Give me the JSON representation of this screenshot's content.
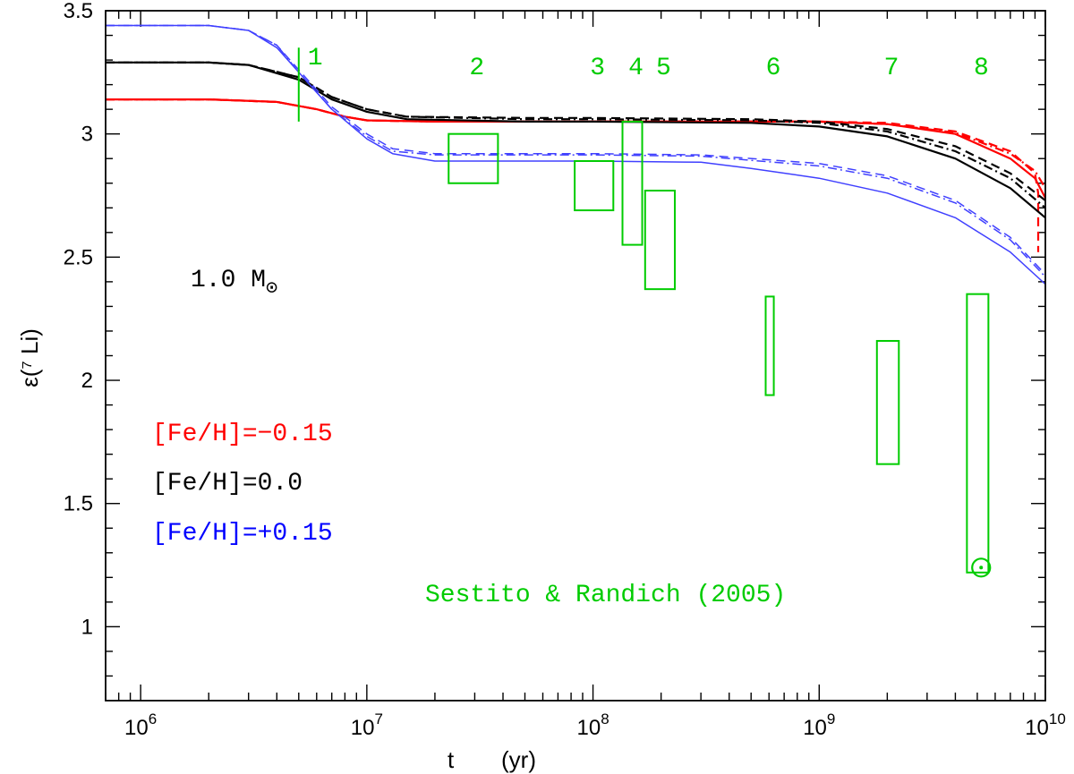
{
  "chart_data": {
    "type": "line",
    "xlabel": "t",
    "xunit": "(yr)",
    "ylabel": "ε(⁷ Li)",
    "xscale": "log",
    "xlim": [
      700000,
      10000000000
    ],
    "ylim": [
      0.7,
      3.5
    ],
    "xticks": [
      {
        "value": 1000000,
        "base": "10",
        "exp": "6"
      },
      {
        "value": 10000000,
        "base": "10",
        "exp": "7"
      },
      {
        "value": 100000000,
        "base": "10",
        "exp": "8"
      },
      {
        "value": 1000000000,
        "base": "10",
        "exp": "9"
      },
      {
        "value": 10000000000,
        "base": "10",
        "exp": "10"
      }
    ],
    "yticks": [
      {
        "value": 1,
        "label": "1"
      },
      {
        "value": 1.5,
        "label": "1.5"
      },
      {
        "value": 2,
        "label": "2"
      },
      {
        "value": 2.5,
        "label": "2.5"
      },
      {
        "value": 3,
        "label": "3"
      },
      {
        "value": 3.5,
        "label": "3.5"
      }
    ],
    "grid": false,
    "mass_label": {
      "text": "1.0 M",
      "symbol": "⊙"
    },
    "legend": {
      "placement": "left",
      "entries": [
        {
          "text": "[Fe/H]=−0.15",
          "color": "#ff0000"
        },
        {
          "text": "[Fe/H]=0.0",
          "color": "#000000"
        },
        {
          "text": "[Fe/H]=+0.15",
          "color": "#0000ff"
        }
      ]
    },
    "series": [
      {
        "color": "#ff0000",
        "style": "solid",
        "width": 2.2,
        "points": [
          [
            700000,
            3.14
          ],
          [
            2000000,
            3.14
          ],
          [
            4000000,
            3.13
          ],
          [
            6000000,
            3.1
          ],
          [
            8000000,
            3.07
          ],
          [
            10000000,
            3.055
          ],
          [
            20000000,
            3.05
          ],
          [
            100000000,
            3.05
          ],
          [
            1000000000,
            3.05
          ],
          [
            2000000000,
            3.04
          ],
          [
            4000000000,
            3.0
          ],
          [
            7000000000,
            2.9
          ],
          [
            9000000000,
            2.82
          ],
          [
            10000000000,
            2.74
          ]
        ]
      },
      {
        "color": "#ff0000",
        "style": "dashed",
        "width": 2.2,
        "points": [
          [
            700000,
            3.14
          ],
          [
            2000000,
            3.14
          ],
          [
            4000000,
            3.13
          ],
          [
            6000000,
            3.1
          ],
          [
            8000000,
            3.07
          ],
          [
            10000000,
            3.055
          ],
          [
            20000000,
            3.05
          ],
          [
            100000000,
            3.05
          ],
          [
            1000000000,
            3.05
          ],
          [
            2000000000,
            3.045
          ],
          [
            4000000000,
            3.01
          ],
          [
            7000000000,
            2.93
          ],
          [
            9000000000,
            2.84
          ],
          [
            9300000000,
            2.76
          ],
          [
            9300000000,
            2.52
          ]
        ]
      },
      {
        "color": "#ff0000",
        "style": "dotdash",
        "width": 2.2,
        "points": [
          [
            700000,
            3.14
          ],
          [
            2000000,
            3.14
          ],
          [
            4000000,
            3.13
          ],
          [
            6000000,
            3.1
          ],
          [
            8000000,
            3.07
          ],
          [
            10000000,
            3.055
          ],
          [
            20000000,
            3.05
          ],
          [
            100000000,
            3.05
          ],
          [
            1000000000,
            3.05
          ],
          [
            2000000000,
            3.04
          ],
          [
            4000000000,
            3.005
          ],
          [
            7000000000,
            2.92
          ],
          [
            9000000000,
            2.85
          ],
          [
            10000000000,
            2.78
          ]
        ]
      },
      {
        "color": "#000000",
        "style": "solid",
        "width": 2.2,
        "points": [
          [
            700000,
            3.29
          ],
          [
            2000000,
            3.29
          ],
          [
            3000000,
            3.28
          ],
          [
            5000000,
            3.22
          ],
          [
            7000000,
            3.14
          ],
          [
            10000000,
            3.09
          ],
          [
            15000000,
            3.06
          ],
          [
            50000000,
            3.05
          ],
          [
            100000000,
            3.05
          ],
          [
            500000000,
            3.045
          ],
          [
            1000000000,
            3.03
          ],
          [
            2000000000,
            2.99
          ],
          [
            4000000000,
            2.9
          ],
          [
            7000000000,
            2.78
          ],
          [
            10000000000,
            2.66
          ]
        ]
      },
      {
        "color": "#000000",
        "style": "dashed",
        "width": 2.2,
        "points": [
          [
            700000,
            3.29
          ],
          [
            2000000,
            3.29
          ],
          [
            3000000,
            3.28
          ],
          [
            5000000,
            3.23
          ],
          [
            7000000,
            3.15
          ],
          [
            10000000,
            3.1
          ],
          [
            15000000,
            3.07
          ],
          [
            50000000,
            3.065
          ],
          [
            100000000,
            3.065
          ],
          [
            500000000,
            3.06
          ],
          [
            1000000000,
            3.05
          ],
          [
            2000000000,
            3.02
          ],
          [
            4000000000,
            2.95
          ],
          [
            7000000000,
            2.84
          ],
          [
            10000000000,
            2.73
          ]
        ]
      },
      {
        "color": "#000000",
        "style": "dotdash",
        "width": 2.2,
        "points": [
          [
            700000,
            3.29
          ],
          [
            2000000,
            3.29
          ],
          [
            3000000,
            3.28
          ],
          [
            5000000,
            3.23
          ],
          [
            7000000,
            3.15
          ],
          [
            10000000,
            3.1
          ],
          [
            15000000,
            3.07
          ],
          [
            50000000,
            3.06
          ],
          [
            100000000,
            3.06
          ],
          [
            500000000,
            3.055
          ],
          [
            1000000000,
            3.045
          ],
          [
            2000000000,
            3.01
          ],
          [
            4000000000,
            2.93
          ],
          [
            7000000000,
            2.82
          ],
          [
            10000000000,
            2.7
          ]
        ]
      },
      {
        "color": "#4040ff",
        "style": "solid",
        "width": 1.5,
        "points": [
          [
            700000,
            3.44
          ],
          [
            2000000,
            3.44
          ],
          [
            3000000,
            3.42
          ],
          [
            4000000,
            3.35
          ],
          [
            5000000,
            3.25
          ],
          [
            7000000,
            3.1
          ],
          [
            10000000,
            2.98
          ],
          [
            13000000,
            2.92
          ],
          [
            20000000,
            2.89
          ],
          [
            100000000,
            2.89
          ],
          [
            300000000,
            2.885
          ],
          [
            500000000,
            2.86
          ],
          [
            1000000000,
            2.82
          ],
          [
            2000000000,
            2.76
          ],
          [
            4000000000,
            2.66
          ],
          [
            7000000000,
            2.52
          ],
          [
            10000000000,
            2.39
          ]
        ]
      },
      {
        "color": "#4040ff",
        "style": "dashed",
        "width": 1.5,
        "points": [
          [
            700000,
            3.44
          ],
          [
            2000000,
            3.44
          ],
          [
            3000000,
            3.42
          ],
          [
            4000000,
            3.36
          ],
          [
            5000000,
            3.26
          ],
          [
            7000000,
            3.11
          ],
          [
            10000000,
            3.0
          ],
          [
            13000000,
            2.94
          ],
          [
            20000000,
            2.92
          ],
          [
            100000000,
            2.92
          ],
          [
            300000000,
            2.915
          ],
          [
            1000000000,
            2.88
          ],
          [
            2000000000,
            2.83
          ],
          [
            4000000000,
            2.73
          ],
          [
            7000000000,
            2.58
          ],
          [
            10000000000,
            2.43
          ]
        ]
      },
      {
        "color": "#4040ff",
        "style": "dotdash",
        "width": 1.5,
        "points": [
          [
            700000,
            3.44
          ],
          [
            2000000,
            3.44
          ],
          [
            3000000,
            3.42
          ],
          [
            4000000,
            3.36
          ],
          [
            5000000,
            3.25
          ],
          [
            7000000,
            3.1
          ],
          [
            10000000,
            2.99
          ],
          [
            13000000,
            2.93
          ],
          [
            20000000,
            2.915
          ],
          [
            100000000,
            2.915
          ],
          [
            300000000,
            2.91
          ],
          [
            1000000000,
            2.87
          ],
          [
            2000000000,
            2.82
          ],
          [
            4000000000,
            2.72
          ],
          [
            7000000000,
            2.57
          ],
          [
            10000000000,
            2.42
          ]
        ]
      }
    ],
    "observations": {
      "color": "#00cc00",
      "source": "Sestito & Randich (2005)",
      "vline": {
        "x": 5000000,
        "y0": 3.05,
        "y1": 3.35,
        "label": "1"
      },
      "boxes": [
        {
          "label": "2",
          "x0": 23000000,
          "x1": 38000000,
          "y0": 2.8,
          "y1": 3.0
        },
        {
          "label": "3",
          "x0": 83000000,
          "x1": 123000000,
          "y0": 2.69,
          "y1": 2.89
        },
        {
          "label": "4",
          "x0": 135000000,
          "x1": 165000000,
          "y0": 2.55,
          "y1": 3.05
        },
        {
          "label": "5",
          "x0": 170000000,
          "x1": 230000000,
          "y0": 2.37,
          "y1": 2.77
        },
        {
          "label": "6",
          "x0": 580000000,
          "x1": 630000000,
          "y0": 1.94,
          "y1": 2.34
        },
        {
          "label": "7",
          "x0": 1800000000,
          "x1": 2250000000,
          "y0": 1.66,
          "y1": 2.16
        },
        {
          "label": "8",
          "x0": 4500000000,
          "x1": 5600000000,
          "y0": 1.22,
          "y1": 2.35
        }
      ],
      "sun": {
        "x": 5200000000,
        "y": 1.24,
        "symbol": "⊙"
      }
    }
  }
}
